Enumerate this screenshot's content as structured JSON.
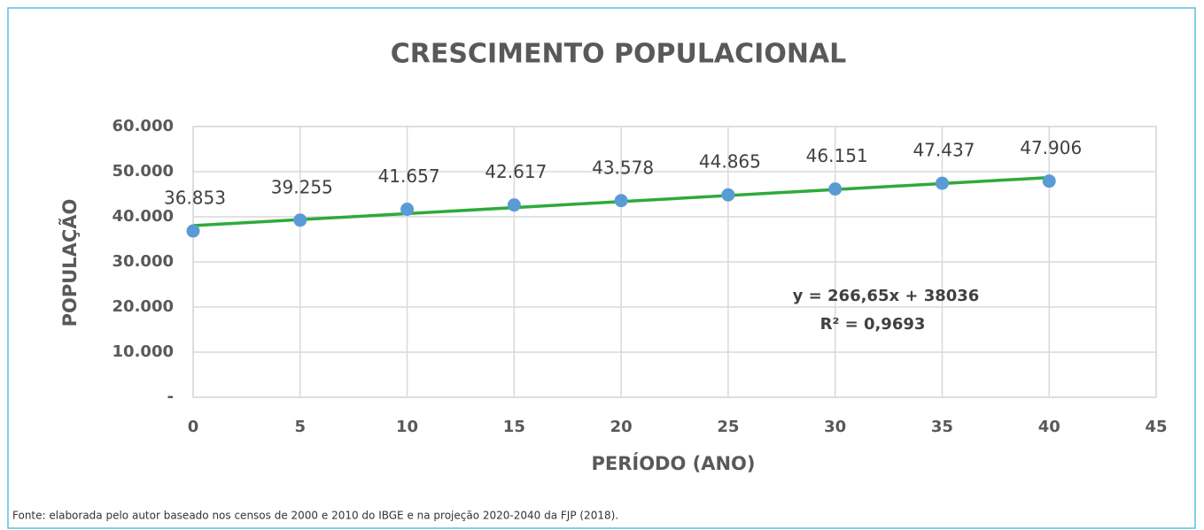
{
  "chart_data": {
    "type": "scatter",
    "title": "CRESCIMENTO POPULACIONAL",
    "x_label": "PERÍODO  (ANO)",
    "y_label": "POPULAÇÃO",
    "x": [
      0,
      5,
      10,
      15,
      20,
      25,
      30,
      35,
      40
    ],
    "series": [
      {
        "name": "População",
        "color": "#5b9bd5",
        "values": [
          36853,
          39255,
          41657,
          42617,
          43578,
          44865,
          46151,
          47437,
          47906
        ],
        "value_labels": [
          "36.853",
          "39.255",
          "41.657",
          "42.617",
          "43.578",
          "44.865",
          "46.151",
          "47.437",
          "47.906"
        ]
      }
    ],
    "trendline": {
      "slope": 266.65,
      "intercept": 38036,
      "color": "#2eaa3c",
      "label": "y = 266,65x + 38036",
      "r2_label": "R² = 0,9693"
    },
    "xlim": [
      0,
      45
    ],
    "xticks": [
      0,
      5,
      10,
      15,
      20,
      25,
      30,
      35,
      40,
      45
    ],
    "ylim": [
      0,
      60000
    ],
    "yticks": [
      {
        "value": 0,
        "label": "-"
      },
      {
        "value": 10000,
        "label": "10.000"
      },
      {
        "value": 20000,
        "label": "20.000"
      },
      {
        "value": 30000,
        "label": "30.000"
      },
      {
        "value": 40000,
        "label": "40.000"
      },
      {
        "value": 50000,
        "label": "50.000"
      },
      {
        "value": 60000,
        "label": "60.000"
      }
    ],
    "grid": true
  },
  "source": "Fonte: elaborada pelo autor baseado nos censos de 2000 e 2010 do IBGE e na projeção 2020-2040 da FJP (2018)."
}
